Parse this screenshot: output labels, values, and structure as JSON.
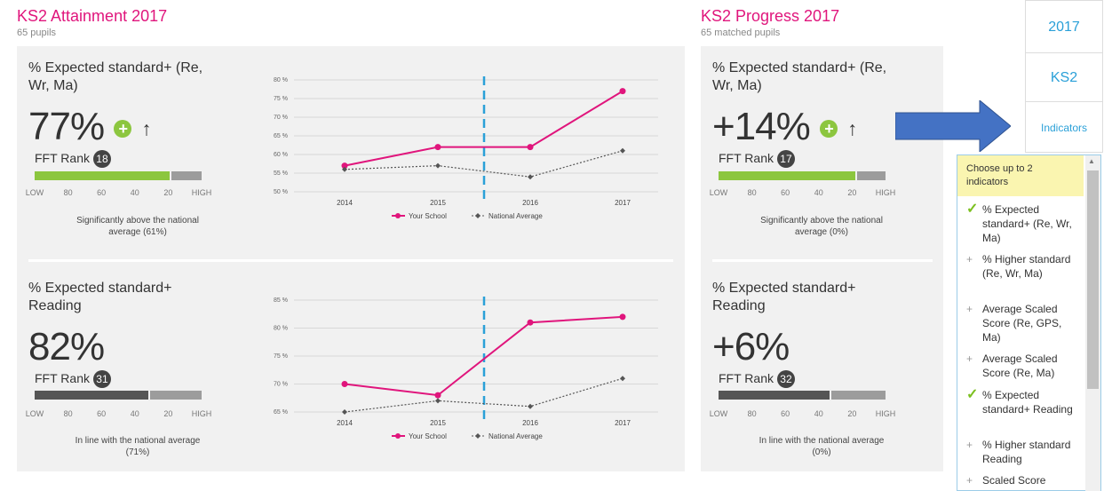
{
  "attainment": {
    "title": "KS2 Attainment 2017",
    "subtitle": "65 pupils"
  },
  "progress": {
    "title": "KS2 Progress 2017",
    "subtitle": "65 matched pupils"
  },
  "scale_labels": [
    "LOW",
    "80",
    "60",
    "40",
    "20",
    "HIGH"
  ],
  "legend": {
    "school": "Your School",
    "national": "National Average"
  },
  "indicators": [
    {
      "title": "% Expected standard+ (Re, Wr, Ma)",
      "att_value": "77%",
      "att_rank": "18",
      "att_note": "Significantly above the national average (61%)",
      "prog_value": "+14%",
      "prog_rank": "17",
      "prog_note": "Significantly above the national average (0%)"
    },
    {
      "title": "% Expected standard+ Reading",
      "att_value": "82%",
      "att_rank": "31",
      "att_note": "In line with the national average (71%)",
      "prog_value": "+6%",
      "prog_rank": "32",
      "prog_note": "In line with the national average (0%)"
    }
  ],
  "fft_rank_label": "FFT Rank",
  "chart_data": [
    {
      "type": "line",
      "title": "% Expected standard+ (Re, Wr, Ma)",
      "categories": [
        "2014",
        "2015",
        "2016",
        "2017"
      ],
      "ylim": [
        50,
        80
      ],
      "yticks": [
        "80 %",
        "75 %",
        "70 %",
        "65 %",
        "60 %",
        "55 %",
        "50 %"
      ],
      "series": [
        {
          "name": "Your School",
          "values": [
            57,
            62,
            62,
            77
          ]
        },
        {
          "name": "National Average",
          "values": [
            56,
            57,
            54,
            61
          ]
        }
      ]
    },
    {
      "type": "line",
      "title": "% Expected standard+ Reading",
      "categories": [
        "2014",
        "2015",
        "2016",
        "2017"
      ],
      "ylim": [
        65,
        85
      ],
      "yticks": [
        "85 %",
        "80 %",
        "75 %",
        "70 %",
        "65 %"
      ],
      "series": [
        {
          "name": "Your School",
          "values": [
            70,
            68,
            81,
            82
          ]
        },
        {
          "name": "National Average",
          "values": [
            65,
            67,
            66,
            71
          ]
        }
      ]
    }
  ],
  "tabs": {
    "year": "2017",
    "stage": "KS2",
    "indicators": "Indicators"
  },
  "dropdown": {
    "header": "Choose up to 2 indicators",
    "items": [
      {
        "label": "% Expected standard+ (Re, Wr, Ma)",
        "checked": "✓"
      },
      {
        "label": "% Higher standard (Re, Wr, Ma)",
        "checked": "+"
      },
      {
        "label": "Average Scaled Score (Re, GPS, Ma)",
        "checked": "+"
      },
      {
        "label": "Average Scaled Score (Re, Ma)",
        "checked": "+"
      },
      {
        "label": "% Expected standard+ Reading",
        "checked": "✓"
      },
      {
        "label": "% Higher standard Reading",
        "checked": "+"
      },
      {
        "label": "Scaled Score",
        "checked": "+"
      }
    ]
  },
  "colors": {
    "accent": "#e0157c",
    "green": "#8cc63f",
    "blue": "#2aa0d8",
    "arrow": "#4472c4"
  }
}
